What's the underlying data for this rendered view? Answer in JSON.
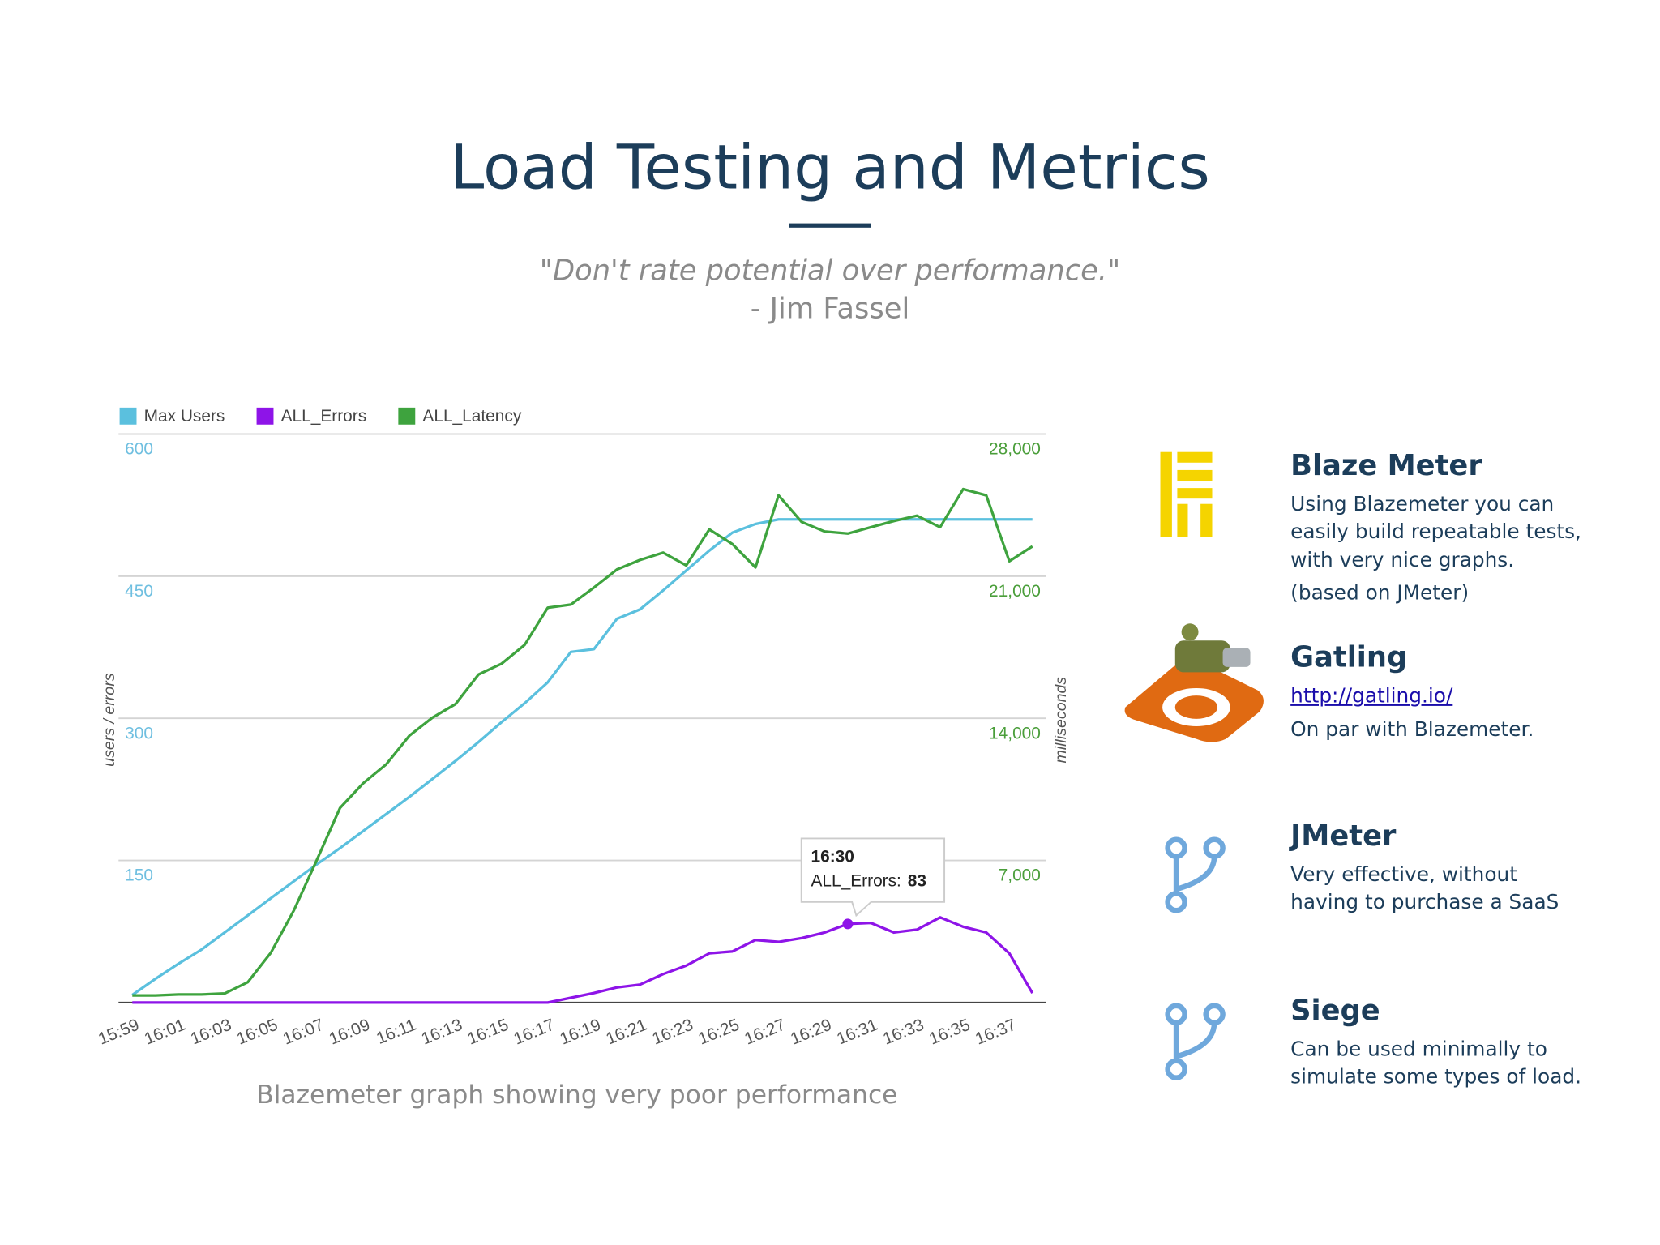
{
  "header": {
    "title": "Load Testing and Metrics",
    "quote": "\"Don't rate potential over performance.\"",
    "author": "- Jim Fassel"
  },
  "caption": "Blazemeter graph showing very poor performance",
  "tools": [
    {
      "name": "Blaze Meter",
      "lines": [
        "Using Blazemeter you can",
        "easily build repeatable tests,",
        "with very nice graphs.",
        "(based on JMeter)"
      ]
    },
    {
      "name": "Gatling",
      "link": "http://gatling.io/",
      "lines": [
        "On par with Blazemeter."
      ]
    },
    {
      "name": "JMeter",
      "lines": [
        "Very effective, without",
        "having to purchase a SaaS"
      ]
    },
    {
      "name": "Siege",
      "lines": [
        "Can be used minimally to",
        "simulate some types of load."
      ]
    }
  ],
  "chart_data": {
    "type": "line",
    "ylabel": "users / errors",
    "y2label": "milliseconds",
    "categories": [
      "15:59",
      null,
      "16:01",
      null,
      "16:03",
      null,
      "16:05",
      null,
      "16:07",
      null,
      "16:09",
      null,
      "16:11",
      null,
      "16:13",
      null,
      "16:15",
      null,
      "16:17",
      null,
      "16:19",
      null,
      "16:21",
      null,
      "16:23",
      null,
      "16:25",
      null,
      "16:27",
      null,
      "16:29",
      null,
      "16:31",
      null,
      "16:33",
      null,
      "16:35",
      null,
      "16:37",
      null
    ],
    "series": [
      {
        "name": "Max Users",
        "color": "#5bc0de",
        "values": [
          8,
          25,
          41,
          56,
          74,
          92,
          110,
          128,
          146,
          163,
          181,
          199,
          217,
          236,
          255,
          275,
          296,
          316,
          338,
          370,
          373,
          405,
          415,
          435,
          456,
          477,
          496,
          505,
          510,
          510,
          510,
          510,
          510,
          510,
          510,
          510,
          510,
          510,
          510,
          510
        ]
      },
      {
        "name": "ALL_Errors",
        "color": "#8e14e8",
        "values": [
          0,
          0,
          0,
          0,
          0,
          0,
          0,
          0,
          0,
          0,
          0,
          0,
          0,
          0,
          0,
          0,
          0,
          0,
          0,
          5,
          10,
          16,
          19,
          30,
          39,
          52,
          54,
          66,
          64,
          68,
          74,
          83,
          84,
          74,
          77,
          90,
          80,
          74,
          52,
          10
        ]
      },
      {
        "name": "ALL_Latency",
        "color": "#3ea33e",
        "axis": "y2",
        "values": [
          350,
          350,
          400,
          400,
          450,
          1000,
          2450,
          4540,
          7040,
          9590,
          10800,
          11730,
          13140,
          14030,
          14700,
          16160,
          16690,
          17620,
          19450,
          19600,
          20440,
          21330,
          21800,
          22160,
          21530,
          23300,
          22580,
          21430,
          24980,
          23670,
          23200,
          23100,
          23410,
          23720,
          23980,
          23410,
          25290,
          24980,
          21740,
          22470
        ]
      }
    ],
    "ylim": [
      0,
      600
    ],
    "yticks": [
      150,
      300,
      450,
      600
    ],
    "y2lim": [
      0,
      28000
    ],
    "y2ticks": [
      {
        "value": 7000,
        "label": "7,000"
      },
      {
        "value": 14000,
        "label": "14,000"
      },
      {
        "value": 21000,
        "label": "21,000"
      },
      {
        "value": 28000,
        "label": "28,000"
      }
    ],
    "grid": true,
    "legend": "top-left",
    "tooltip": {
      "title": "16:30",
      "label": "ALL_Errors:",
      "series": 1,
      "index": 31
    }
  }
}
